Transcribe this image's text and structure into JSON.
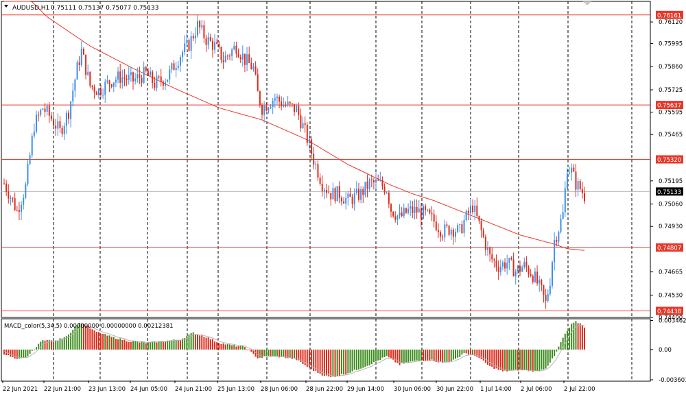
{
  "header": {
    "symbol": "AUDUSD,H1",
    "ohlc": "0.75111 0.75137 0.75077 0.75133",
    "arrow": "dropdown-arrow-icon"
  },
  "macd_label": "MACD_color(5,34,5) 0.00000000 0.00000000 0.00212381",
  "colors": {
    "background": "#ffffff",
    "bull": "#3d8fe8",
    "bear": "#e02a1a",
    "level": "#e8382a",
    "ma": "#e8382a",
    "grid": "#000000",
    "hist_pos": "#3c8c1e",
    "hist_neg": "#e02a1a",
    "signal": "#b4b4b4"
  },
  "chart_data": {
    "type": "candlestick",
    "symbol": "AUDUSD",
    "timeframe": "H1",
    "price_axis": {
      "ticks": [
        "0.76120",
        "0.75995",
        "0.75860",
        "0.75725",
        "0.75595",
        "0.75465",
        "0.75195",
        "0.75060",
        "0.74930",
        "0.74665",
        "0.74530",
        "0.74400"
      ],
      "ylim": [
        0.744,
        0.7624
      ]
    },
    "horizontal_levels": [
      "0.76161",
      "0.75637",
      "0.75320",
      "0.74807",
      "0.74438"
    ],
    "current_price": "0.75133",
    "time_axis": [
      "22 Jun 2021",
      "22 Jun 21:00",
      "23 Jun 13:00",
      "24 Jun 05:00",
      "24 Jun 21:00",
      "25 Jun 13:00",
      "28 Jun 06:00",
      "28 Jun 22:00",
      "29 Jun 14:00",
      "30 Jun 06:00",
      "30 Jun 22:00",
      "1 Jul 14:00",
      "2 Jul 06:00",
      "2 Jul 22:00"
    ],
    "price_anchors": [
      [
        0,
        0.7518
      ],
      [
        4,
        0.7508
      ],
      [
        6,
        0.7502
      ],
      [
        10,
        0.7516
      ],
      [
        14,
        0.7552
      ],
      [
        18,
        0.7562
      ],
      [
        22,
        0.7556
      ],
      [
        26,
        0.7548
      ],
      [
        30,
        0.756
      ],
      [
        34,
        0.7585
      ],
      [
        36,
        0.7595
      ],
      [
        40,
        0.7575
      ],
      [
        44,
        0.7572
      ],
      [
        50,
        0.7578
      ],
      [
        54,
        0.758
      ],
      [
        60,
        0.7578
      ],
      [
        66,
        0.7582
      ],
      [
        70,
        0.7576
      ],
      [
        76,
        0.758
      ],
      [
        82,
        0.7593
      ],
      [
        86,
        0.7599
      ],
      [
        90,
        0.761
      ],
      [
        94,
        0.7602
      ],
      [
        98,
        0.7598
      ],
      [
        102,
        0.759
      ],
      [
        108,
        0.7598
      ],
      [
        112,
        0.759
      ],
      [
        116,
        0.7585
      ],
      [
        118,
        0.757
      ],
      [
        120,
        0.7562
      ],
      [
        126,
        0.7568
      ],
      [
        130,
        0.7564
      ],
      [
        136,
        0.7561
      ],
      [
        140,
        0.7548
      ],
      [
        144,
        0.7532
      ],
      [
        148,
        0.7518
      ],
      [
        152,
        0.7512
      ],
      [
        156,
        0.7512
      ],
      [
        160,
        0.7508
      ],
      [
        166,
        0.7512
      ],
      [
        170,
        0.7518
      ],
      [
        174,
        0.7518
      ],
      [
        178,
        0.7515
      ],
      [
        180,
        0.7503
      ],
      [
        184,
        0.7498
      ],
      [
        188,
        0.7502
      ],
      [
        192,
        0.7502
      ],
      [
        196,
        0.75
      ],
      [
        200,
        0.7496
      ],
      [
        204,
        0.749
      ],
      [
        208,
        0.7492
      ],
      [
        212,
        0.749
      ],
      [
        214,
        0.7496
      ],
      [
        218,
        0.7505
      ],
      [
        222,
        0.749
      ],
      [
        226,
        0.7475
      ],
      [
        230,
        0.747
      ],
      [
        234,
        0.7472
      ],
      [
        238,
        0.7467
      ],
      [
        242,
        0.747
      ],
      [
        246,
        0.7465
      ],
      [
        250,
        0.7455
      ],
      [
        252,
        0.7448
      ],
      [
        254,
        0.7462
      ],
      [
        256,
        0.7485
      ],
      [
        258,
        0.7492
      ],
      [
        260,
        0.75
      ],
      [
        262,
        0.7528
      ],
      [
        264,
        0.7525
      ],
      [
        266,
        0.7518
      ],
      [
        268,
        0.7515
      ],
      [
        270,
        0.7511
      ]
    ],
    "moving_average": [
      [
        0,
        0.764
      ],
      [
        20,
        0.7615
      ],
      [
        40,
        0.7598
      ],
      [
        60,
        0.7585
      ],
      [
        80,
        0.7573
      ],
      [
        100,
        0.7562
      ],
      [
        120,
        0.7555
      ],
      [
        140,
        0.7544
      ],
      [
        160,
        0.7529
      ],
      [
        180,
        0.7517
      ],
      [
        190,
        0.7512
      ],
      [
        200,
        0.7508
      ],
      [
        220,
        0.7498
      ],
      [
        240,
        0.7488
      ],
      [
        255,
        0.7483
      ],
      [
        262,
        0.748
      ],
      [
        270,
        0.7479
      ]
    ],
    "macd": {
      "name": "MACD_color(5,34,5)",
      "ticks": [
        "0.0034623",
        "0.00",
        "-0.003601"
      ],
      "ylim": [
        -0.0036,
        0.0035
      ],
      "hist_anchors": [
        [
          0,
          -0.0005
        ],
        [
          6,
          -0.0012
        ],
        [
          10,
          -0.001
        ],
        [
          14,
          0.0
        ],
        [
          18,
          0.0012
        ],
        [
          24,
          0.001
        ],
        [
          30,
          0.0018
        ],
        [
          34,
          0.003
        ],
        [
          36,
          0.0032
        ],
        [
          42,
          0.0022
        ],
        [
          50,
          0.0015
        ],
        [
          58,
          0.001
        ],
        [
          66,
          0.0008
        ],
        [
          74,
          0.001
        ],
        [
          82,
          0.0012
        ],
        [
          88,
          0.002
        ],
        [
          94,
          0.0015
        ],
        [
          100,
          0.0008
        ],
        [
          106,
          0.0005
        ],
        [
          112,
          0.0003
        ],
        [
          118,
          -0.001
        ],
        [
          124,
          -0.0008
        ],
        [
          130,
          -0.0009
        ],
        [
          136,
          -0.0012
        ],
        [
          142,
          -0.0022
        ],
        [
          148,
          -0.003
        ],
        [
          152,
          -0.0033
        ],
        [
          160,
          -0.0028
        ],
        [
          170,
          -0.0018
        ],
        [
          178,
          -0.0008
        ],
        [
          184,
          -0.0018
        ],
        [
          190,
          -0.0014
        ],
        [
          198,
          -0.0012
        ],
        [
          204,
          -0.0016
        ],
        [
          210,
          -0.0012
        ],
        [
          214,
          -0.0004
        ],
        [
          220,
          -0.0008
        ],
        [
          226,
          -0.002
        ],
        [
          232,
          -0.0026
        ],
        [
          240,
          -0.0024
        ],
        [
          248,
          -0.0026
        ],
        [
          252,
          -0.0022
        ],
        [
          256,
          -0.0008
        ],
        [
          260,
          0.0014
        ],
        [
          264,
          0.003
        ],
        [
          266,
          0.0033
        ],
        [
          268,
          0.0031
        ],
        [
          270,
          0.0027
        ]
      ]
    }
  }
}
